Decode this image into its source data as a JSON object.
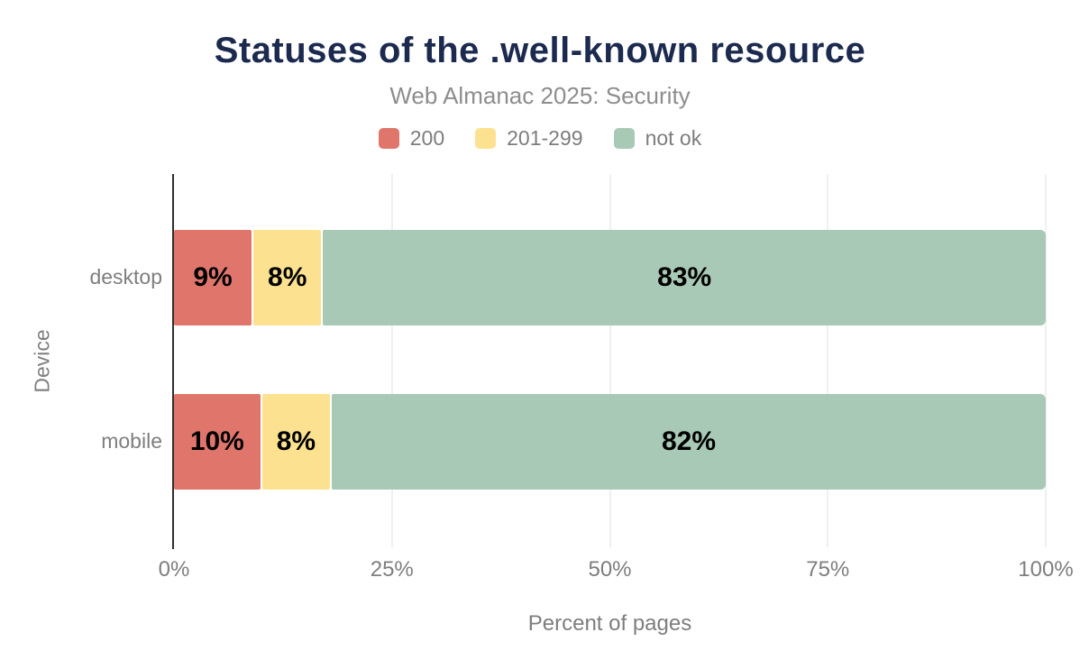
{
  "title": "Statuses of the .well-known resource",
  "subtitle": "Web Almanac 2025: Security",
  "legend": {
    "items": [
      "200",
      "201-299",
      "not ok"
    ],
    "position": "top"
  },
  "chart_data": {
    "type": "bar",
    "orientation": "horizontal",
    "stacked": true,
    "title": "Statuses of the .well-known resource",
    "subtitle": "Web Almanac 2025: Security",
    "categories": [
      "desktop",
      "mobile"
    ],
    "series": [
      {
        "name": "200",
        "color": "#e0766b",
        "values": [
          9,
          10
        ]
      },
      {
        "name": "201-299",
        "color": "#fce290",
        "values": [
          8,
          8
        ]
      },
      {
        "name": "not ok",
        "color": "#a8c9b6",
        "values": [
          83,
          82
        ]
      }
    ],
    "bar_value_labels": [
      [
        "9%",
        "8%",
        "83%"
      ],
      [
        "10%",
        "8%",
        "82%"
      ]
    ],
    "xlabel": "Percent of pages",
    "ylabel": "Device",
    "xlim": [
      0,
      100
    ],
    "xticks": [
      0,
      25,
      50,
      75,
      100
    ],
    "xtick_labels": [
      "0%",
      "25%",
      "50%",
      "75%",
      "100%"
    ],
    "unit": "%",
    "grid": true,
    "legend_position": "top",
    "value_label_position": "inside-center"
  },
  "colors": {
    "title": "#1b2a4e",
    "subtitle": "#8d8d8d",
    "axis_text": "#7e7e7e",
    "grid_line": "#f0f0f0",
    "axis_line": "#2e2e2e",
    "bar_label": "#000000",
    "background": "#ffffff",
    "series_200": "#e0766b",
    "series_201_299": "#fce290",
    "series_not_ok": "#a8c9b6"
  }
}
